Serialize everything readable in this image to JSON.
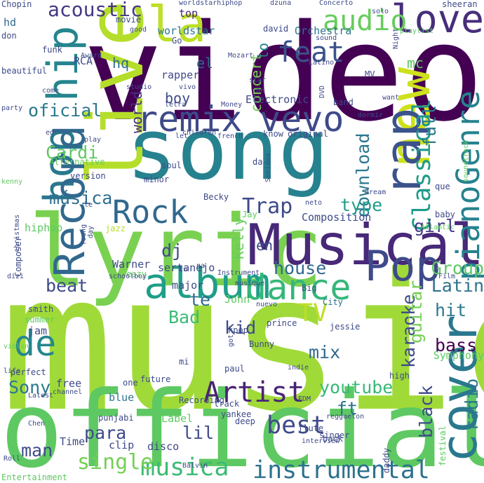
{
  "words": [
    {
      "text": "music",
      "color": "#a0da39"
    },
    {
      "text": "video",
      "color": "#440154"
    },
    {
      "text": "official",
      "color": "#5ec962"
    },
    {
      "text": "song",
      "color": "#26828e"
    },
    {
      "text": "lyric",
      "color": "#7ad151"
    },
    {
      "text": "live",
      "color": "#b5de2b"
    },
    {
      "text": "Musical",
      "color": "#482878"
    },
    {
      "text": "remix",
      "color": "#3e4a89"
    },
    {
      "text": "vevo",
      "color": "#3e4a89"
    },
    {
      "text": "hip",
      "color": "#25858e"
    },
    {
      "text": "hop",
      "color": "#2a788e"
    },
    {
      "text": "new",
      "color": "#cde11d"
    },
    {
      "text": "rap",
      "color": "#3b528b"
    },
    {
      "text": "Record",
      "color": "#31688e"
    },
    {
      "text": "Pop",
      "color": "#3e4a89"
    },
    {
      "text": "album",
      "color": "#1f9e89"
    },
    {
      "text": "dance",
      "color": "#35b779"
    },
    {
      "text": "cover",
      "color": "#2a788e"
    },
    {
      "text": "instrumental",
      "color": "#2c728e"
    },
    {
      "text": "musica",
      "color": "#3bbb75"
    },
    {
      "text": "love",
      "color": "#472d7b"
    },
    {
      "text": "Rock",
      "color": "#31688e"
    },
    {
      "text": "pianoGenre",
      "color": "#26828e"
    },
    {
      "text": "Artist",
      "color": "#482475"
    },
    {
      "text": "de",
      "color": "#24868e"
    },
    {
      "text": "la",
      "color": "#bddf26"
    },
    {
      "text": "Classical",
      "color": "#1f9a8a"
    },
    {
      "text": "audio",
      "color": "#67cc5c"
    },
    {
      "text": "feat",
      "color": "#3b528b"
    },
    {
      "text": "acoustic",
      "color": "#443983"
    },
    {
      "text": "oficial",
      "color": "#2a788e"
    },
    {
      "text": "Cardi",
      "color": "#5ec962"
    },
    {
      "text": "single",
      "color": "#75d054"
    },
    {
      "text": "youtube",
      "color": "#38b977"
    },
    {
      "text": "best",
      "color": "#3e4a89"
    },
    {
      "text": "house",
      "color": "#31688e"
    },
    {
      "text": "Trap",
      "color": "#3e4a89"
    },
    {
      "text": "download",
      "color": "#2a788e"
    },
    {
      "text": "full",
      "color": "#297b8e"
    },
    {
      "text": "música",
      "color": "#2e6e8e"
    },
    {
      "text": "type",
      "color": "#1f9e89"
    },
    {
      "text": "girl",
      "color": "#443983"
    },
    {
      "text": "karaoke",
      "color": "#3e4a89"
    },
    {
      "text": "guitar",
      "color": "#75d054"
    },
    {
      "text": "black",
      "color": "#3e4a89"
    },
    {
      "text": "radio",
      "color": "#2a788e"
    },
    {
      "text": "TV",
      "color": "#bddf26"
    },
    {
      "text": "hit",
      "color": "#2a788e"
    },
    {
      "text": "bass",
      "color": "#440154"
    },
    {
      "text": "mix",
      "color": "#31688e"
    },
    {
      "text": "kid",
      "color": "#3e4a89"
    },
    {
      "text": "Bad",
      "color": "#3bbb75"
    },
    {
      "text": "te",
      "color": "#2e6e8e"
    },
    {
      "text": "ft",
      "color": "#2c728e"
    },
    {
      "text": "para",
      "color": "#3e4a89"
    },
    {
      "text": "lil",
      "color": "#3e4a89"
    },
    {
      "text": "man",
      "color": "#3e4a89"
    },
    {
      "text": "Sony",
      "color": "#2a788e"
    },
    {
      "text": "beat",
      "color": "#3e4a89"
    },
    {
      "text": "Latin",
      "color": "#2c728e"
    },
    {
      "text": "Group",
      "color": "#5ec962"
    },
    {
      "text": "dj",
      "color": "#3e4a89"
    },
    {
      "text": "Kelly",
      "color": "#67cc5c"
    },
    {
      "text": "en",
      "color": "#3e4a89"
    },
    {
      "text": "concert",
      "color": "#75d054"
    },
    {
      "text": "lo",
      "color": "#26828e"
    },
    {
      "text": "hq",
      "color": "#2e6e8e"
    },
    {
      "text": "el",
      "color": "#31688e"
    },
    {
      "text": "boy",
      "color": "#3e4a89"
    },
    {
      "text": "world",
      "color": "#46327e"
    },
    {
      "text": "mc",
      "color": "#5ec962"
    },
    {
      "text": "top",
      "color": "#482475"
    },
    {
      "text": "hd",
      "color": "#31688e"
    },
    {
      "text": "Electronic",
      "color": "#3e4a89"
    },
    {
      "text": "Orchestra",
      "color": "#2c728e"
    },
    {
      "text": "worldstar",
      "color": "#2a788e"
    },
    {
      "text": "RCA",
      "color": "#3e4a89"
    },
    {
      "text": "rapper",
      "color": "#3e4a89"
    },
    {
      "text": "Composition",
      "color": "#3e4a89"
    },
    {
      "text": "sertanejo",
      "color": "#3e4a89"
    },
    {
      "text": "Warner",
      "color": "#3e4a89"
    },
    {
      "text": "free",
      "color": "#3e4a89"
    },
    {
      "text": "blue",
      "color": "#2a788e"
    },
    {
      "text": "Label",
      "color": "#5ec962"
    },
    {
      "text": "disco",
      "color": "#3e4a89"
    },
    {
      "text": "clip",
      "color": "#3e4a89"
    },
    {
      "text": "Time",
      "color": "#3e4a89"
    },
    {
      "text": "jam",
      "color": "#3e4a89"
    },
    {
      "text": "major",
      "color": "#3e4a89"
    },
    {
      "text": "John",
      "color": "#5ec962"
    },
    {
      "text": "hiphop",
      "color": "#5ec962"
    },
    {
      "text": "Symphony",
      "color": "#5ec962"
    },
    {
      "text": "Chopin",
      "color": "#3e4a89"
    },
    {
      "text": "funk",
      "color": "#3e4a89"
    },
    {
      "text": "don",
      "color": "#3e4a89"
    },
    {
      "text": "beautiful",
      "color": "#3e4a89"
    },
    {
      "text": "party",
      "color": "#3e4a89"
    },
    {
      "text": "Alternative",
      "color": "#67cc5c"
    },
    {
      "text": "version",
      "color": "#3e4a89"
    },
    {
      "text": "jazz",
      "color": "#b5de2b"
    },
    {
      "text": "Becky",
      "color": "#3e4a89"
    },
    {
      "text": "Jay",
      "color": "#5ec962"
    },
    {
      "text": "Young",
      "color": "#3e4a89"
    },
    {
      "text": "eazy",
      "color": "#5ec962"
    },
    {
      "text": "smith",
      "color": "#3e4a89"
    },
    {
      "text": "summer",
      "color": "#5ec962"
    },
    {
      "text": "nuevo",
      "color": "#3e4a89"
    },
    {
      "text": "kpop",
      "color": "#3e4a89"
    },
    {
      "text": "prince",
      "color": "#3e4a89"
    },
    {
      "text": "City",
      "color": "#2c728e"
    },
    {
      "text": "jessie",
      "color": "#3e4a89"
    },
    {
      "text": "Big",
      "color": "#3e4a89"
    },
    {
      "text": "Bunny",
      "color": "#3e4a89"
    },
    {
      "text": "paul",
      "color": "#3e4a89"
    },
    {
      "text": "future",
      "color": "#3e4a89"
    },
    {
      "text": "one",
      "color": "#3e4a89"
    },
    {
      "text": "Recording",
      "color": "#3e4a89"
    },
    {
      "text": "EDM",
      "color": "#3e4a89"
    },
    {
      "text": "reggaeton",
      "color": "#3e4a89"
    },
    {
      "text": "track",
      "color": "#3e4a89"
    },
    {
      "text": "yankee",
      "color": "#3e4a89"
    },
    {
      "text": "singer",
      "color": "#3e4a89"
    },
    {
      "text": "flute",
      "color": "#3e4a89"
    },
    {
      "text": "deep",
      "color": "#3e4a89"
    },
    {
      "text": "interview",
      "color": "#3e4a89"
    },
    {
      "text": "back",
      "color": "#3e4a89"
    },
    {
      "text": "high",
      "color": "#3e4a89"
    },
    {
      "text": "daddy",
      "color": "#3e4a89"
    },
    {
      "text": "festival",
      "color": "#5ec962"
    },
    {
      "text": "Chen",
      "color": "#3e4a89"
    },
    {
      "text": "Roll",
      "color": "#3e4a89"
    },
    {
      "text": "Entertainment",
      "color": "#5ec962"
    },
    {
      "text": "Balvin",
      "color": "#3e4a89"
    },
    {
      "text": "punjabi",
      "color": "#3e4a89"
    },
    {
      "text": "channel",
      "color": "#3e4a89"
    },
    {
      "text": "Latest",
      "color": "#3e4a89"
    },
    {
      "text": "perfect",
      "color": "#3e4a89"
    },
    {
      "text": "life",
      "color": "#3e4a89"
    },
    {
      "text": "violin",
      "color": "#5ec962"
    },
    {
      "text": "dizi",
      "color": "#3e4a89"
    },
    {
      "text": "Composer",
      "color": "#3e4a89"
    },
    {
      "text": "christmas",
      "color": "#3e4a89"
    },
    {
      "text": "kenny",
      "color": "#5ec962"
    },
    {
      "text": "le",
      "color": "#3e4a89"
    },
    {
      "text": "day",
      "color": "#3e4a89"
    },
    {
      "text": "minor",
      "color": "#3e4a89"
    },
    {
      "text": "soul",
      "color": "#3e4a89"
    },
    {
      "text": "let",
      "color": "#3e4a89"
    },
    {
      "text": "children",
      "color": "#3e4a89"
    },
    {
      "text": "french",
      "color": "#3e4a89"
    },
    {
      "text": "know",
      "color": "#3e4a89"
    },
    {
      "text": "original",
      "color": "#3e4a89"
    },
    {
      "text": "Money",
      "color": "#3e4a89"
    },
    {
      "text": "letra",
      "color": "#3e4a89"
    },
    {
      "text": "vivo",
      "color": "#3e4a89"
    },
    {
      "text": "star",
      "color": "#3e4a89"
    },
    {
      "text": "nn",
      "color": "#3e4a89"
    },
    {
      "text": "band",
      "color": "#3e4a89"
    },
    {
      "text": "dormir",
      "color": "#3e4a89"
    },
    {
      "text": "want",
      "color": "#3e4a89"
    },
    {
      "text": "DVD",
      "color": "#3e4a89"
    },
    {
      "text": "MV",
      "color": "#3e4a89"
    },
    {
      "text": "Latino",
      "color": "#3e4a89"
    },
    {
      "text": "Night",
      "color": "#3e4a89"
    },
    {
      "text": "Mozart",
      "color": "#3e4a89"
    },
    {
      "text": "Award",
      "color": "#3e4a89"
    },
    {
      "text": "studio",
      "color": "#3e4a89"
    },
    {
      "text": "come",
      "color": "#3e4a89"
    },
    {
      "text": "ed",
      "color": "#3e4a89"
    },
    {
      "text": "play",
      "color": "#3e4a89"
    },
    {
      "text": "worldstarhiphop",
      "color": "#3e4a89"
    },
    {
      "text": "Go",
      "color": "#3e4a89"
    },
    {
      "text": "movie",
      "color": "#3e4a89"
    },
    {
      "text": "good",
      "color": "#3e4a89"
    },
    {
      "text": "david",
      "color": "#3e4a89"
    },
    {
      "text": "dzuna",
      "color": "#3e4a89"
    },
    {
      "text": "Concerto",
      "color": "#3e4a89"
    },
    {
      "text": "solo",
      "color": "#3e4a89"
    },
    {
      "text": "sheeran",
      "color": "#3e4a89"
    },
    {
      "text": "playlist",
      "color": "#5ec962"
    },
    {
      "text": "sound",
      "color": "#3e4a89"
    },
    {
      "text": "que",
      "color": "#3e4a89"
    },
    {
      "text": "baby",
      "color": "#3e4a89"
    },
    {
      "text": "Atlantic",
      "color": "#5ec962"
    },
    {
      "text": "dream",
      "color": "#3e4a89"
    },
    {
      "text": "neto",
      "color": "#3e4a89"
    },
    {
      "text": "soundtrack",
      "color": "#5ec962"
    },
    {
      "text": "da",
      "color": "#3e4a89"
    },
    {
      "text": "Sonidos",
      "color": "#3e4a89"
    },
    {
      "text": "Instrument",
      "color": "#3e4a89"
    },
    {
      "text": "schoolboy",
      "color": "#3e4a89"
    },
    {
      "text": "tu",
      "color": "#3e4a89"
    },
    {
      "text": "Film",
      "color": "#3e4a89"
    },
    {
      "text": "musique",
      "color": "#3e4a89"
    },
    {
      "text": "got",
      "color": "#3e4a89"
    },
    {
      "text": "indie",
      "color": "#3e4a89"
    },
    {
      "text": "mi",
      "color": "#3e4a89"
    },
    {
      "text": "na",
      "color": "#3e4a89"
    }
  ]
}
